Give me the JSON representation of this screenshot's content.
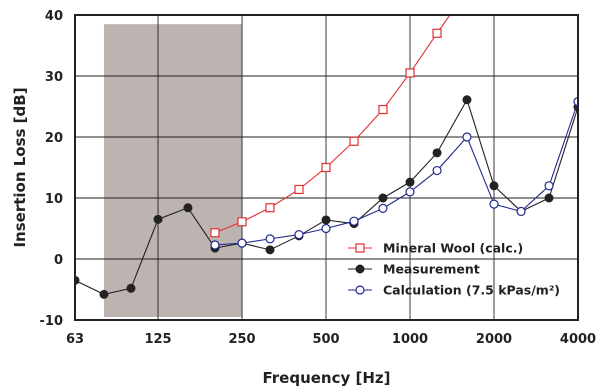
{
  "chart_data": {
    "type": "line",
    "title": "",
    "xlabel": "Frequency  [Hz]",
    "ylabel": "Insertion Loss  [dB]",
    "x_scale": "log",
    "xlim": [
      63,
      4000
    ],
    "ylim": [
      -10,
      40
    ],
    "x_ticks": [
      {
        "value": 63,
        "label": "63"
      },
      {
        "value": 125,
        "label": "125"
      },
      {
        "value": 250,
        "label": "250"
      },
      {
        "value": 500,
        "label": "500"
      },
      {
        "value": 1000,
        "label": "1000"
      },
      {
        "value": 2000,
        "label": "2000"
      },
      {
        "value": 4000,
        "label": "4000"
      }
    ],
    "y_ticks": [
      {
        "value": -10,
        "label": "-10"
      },
      {
        "value": 0,
        "label": "0"
      },
      {
        "value": 10,
        "label": "10"
      },
      {
        "value": 20,
        "label": "20"
      },
      {
        "value": 30,
        "label": "30"
      },
      {
        "value": 40,
        "label": "40"
      }
    ],
    "grid": true,
    "shaded_region": {
      "x": [
        80,
        250
      ],
      "y": [
        -9.5,
        38.5
      ],
      "color": "#bdb3b1"
    },
    "legend_position": "bottom-right",
    "series": [
      {
        "name": "Mineral Wool (calc.)",
        "color": "#e03030",
        "marker": "open-square",
        "x": [
          200,
          250,
          315,
          400,
          500,
          630,
          800,
          1000,
          1250,
          1600
        ],
        "y": [
          4.3,
          6.1,
          8.4,
          11.4,
          15.0,
          19.3,
          24.5,
          30.5,
          37.0,
          44.0
        ]
      },
      {
        "name": "Measurement",
        "color": "#222222",
        "marker": "filled-circle",
        "x": [
          63,
          80,
          100,
          125,
          160,
          200,
          250,
          315,
          400,
          500,
          630,
          800,
          1000,
          1250,
          1600,
          2000,
          2500,
          3150,
          4000
        ],
        "y": [
          -3.5,
          -5.8,
          -4.8,
          6.5,
          8.4,
          1.8,
          2.6,
          1.5,
          3.8,
          6.4,
          5.8,
          10.0,
          12.6,
          17.4,
          26.1,
          12.0,
          7.8,
          10.0,
          24.9
        ]
      },
      {
        "name": "Calculation (7.5 kPas/m²)",
        "color": "#1f2a8c",
        "marker": "open-circle",
        "x": [
          200,
          250,
          315,
          400,
          500,
          630,
          800,
          1000,
          1250,
          1600,
          2000,
          2500,
          3150,
          4000
        ],
        "y": [
          2.3,
          2.6,
          3.3,
          4.0,
          5.0,
          6.2,
          8.3,
          11.0,
          14.5,
          20.0,
          9.0,
          7.8,
          12.0,
          25.8
        ]
      }
    ]
  }
}
